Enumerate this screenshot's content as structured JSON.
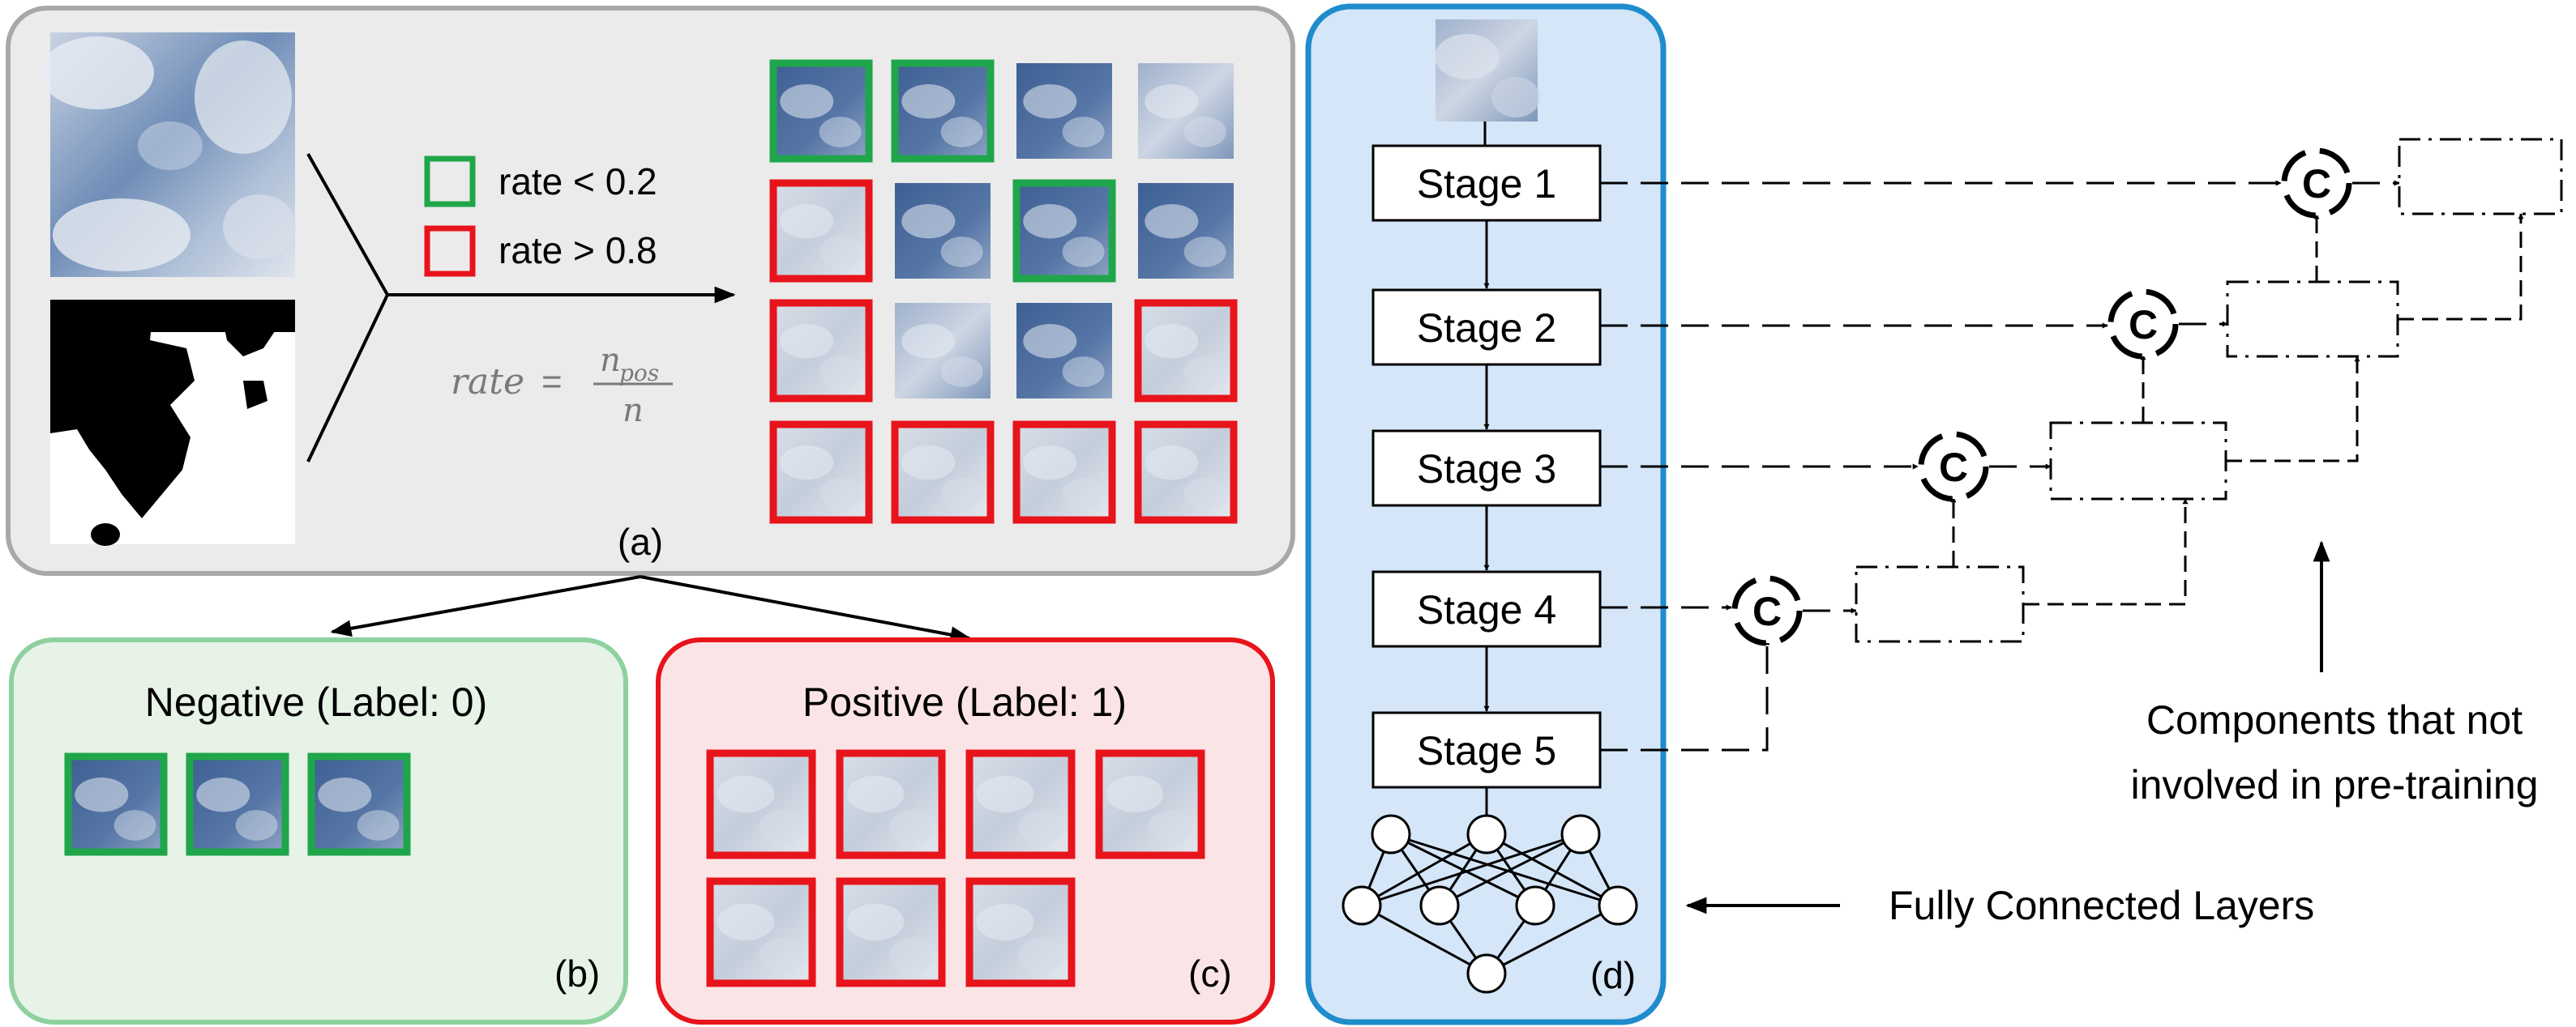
{
  "panel_a": {
    "legend": {
      "green_label": "rate < 0.2",
      "red_label": "rate > 0.8"
    },
    "formula": {
      "lhs": "rate",
      "eq": "=",
      "numerator": "n",
      "numerator_sub": "pos",
      "denominator": "n"
    },
    "caption": "(a)",
    "patch_grid": [
      [
        "green",
        "green",
        "none",
        "none"
      ],
      [
        "red",
        "none",
        "green",
        "none"
      ],
      [
        "red",
        "none",
        "none",
        "red"
      ],
      [
        "red",
        "red",
        "red",
        "red"
      ]
    ]
  },
  "panel_b": {
    "title": "Negative (Label: 0)",
    "caption": "(b)",
    "patch_count": 3
  },
  "panel_c": {
    "title": "Positive (Label: 1)",
    "caption": "(c)",
    "patch_count": 7
  },
  "panel_d": {
    "caption": "(d)",
    "stages": [
      "Stage 1",
      "Stage 2",
      "Stage 3",
      "Stage 4",
      "Stage 5"
    ],
    "fc_label": "Fully Connected Layers"
  },
  "decoder": {
    "concat_symbol": "C",
    "components_label_line1": "Components that not",
    "components_label_line2": "involved in pre-training"
  },
  "colors": {
    "green": "#1fa64a",
    "red": "#e8141c",
    "panel_a_bg": "#ebebeb",
    "panel_b_bg": "#e6f3e6",
    "panel_b_border": "#8fd19e",
    "panel_c_bg": "#fbe4e6",
    "panel_d_bg": "#d4e6f8",
    "panel_d_border": "#1f8ccc"
  }
}
